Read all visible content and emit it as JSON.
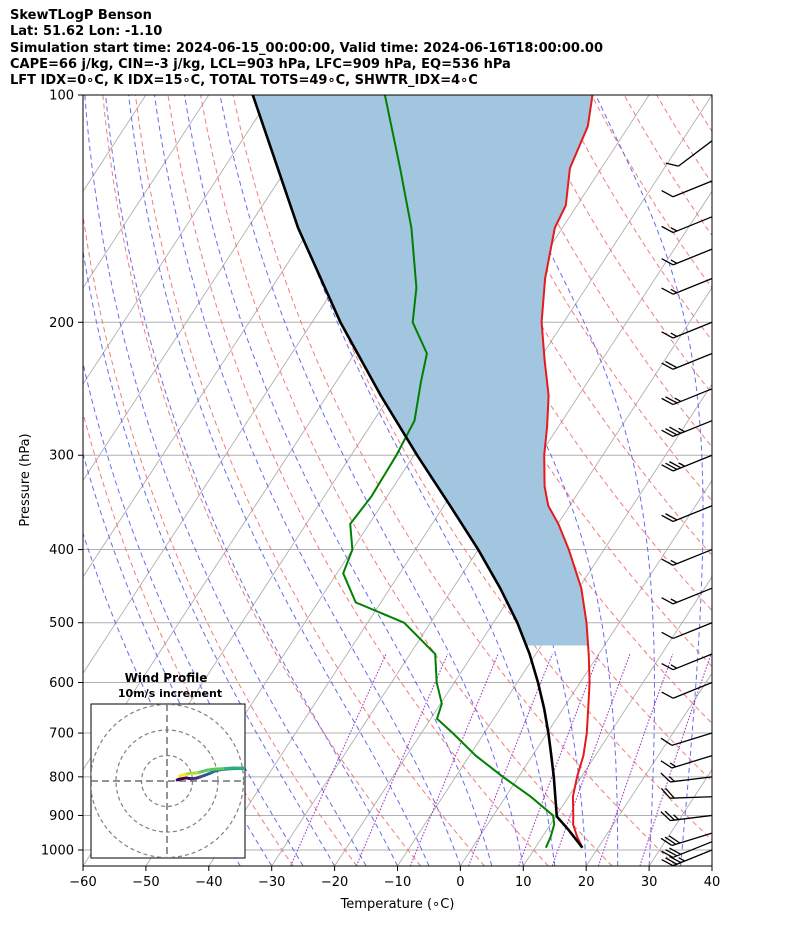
{
  "header": {
    "title_lines": [
      "SkewTLogP Benson",
      "Lat: 51.62   Lon: -1.10",
      "Simulation start time: 2024-06-15_00:00:00, Valid time: 2024-06-16T18:00:00.00",
      "CAPE=66 j/kg, CIN=-3 j/kg, LCL=903 hPa, LFC=909 hPa, EQ=536 hPa",
      "LFT IDX=0∘C, K IDX=15∘C, TOTAL TOTS=49∘C, SHWTR_IDX=4∘C"
    ]
  },
  "chart_data": {
    "type": "skew-t-logp",
    "xlabel": "Temperature (∘C)",
    "ylabel": "Pressure (hPa)",
    "xlim": [
      -60,
      40
    ],
    "plim": [
      1050,
      100
    ],
    "x_ticks": [
      -60,
      -50,
      -40,
      -30,
      -20,
      -10,
      0,
      10,
      20,
      30,
      40
    ],
    "x_tick_labels": [
      "−60",
      "−50",
      "−40",
      "−30",
      "−20",
      "−10",
      "0",
      "10",
      "20",
      "30",
      "40"
    ],
    "p_ticks": [
      100,
      200,
      300,
      400,
      500,
      600,
      700,
      800,
      900,
      1000
    ],
    "p_tick_labels": [
      "100",
      "200",
      "300",
      "400",
      "500",
      "600",
      "700",
      "800",
      "900",
      "1000"
    ],
    "grid": true,
    "colors": {
      "temperature": "#e41a1c",
      "dewpoint": "#008000",
      "parcel": "#000000",
      "cape_fill": "#a3c6e0",
      "isotherm": "#b0b0b0",
      "dry_adiabat": "#f26d6d",
      "moist_adiabat": "#5a5af0",
      "mixing_ratio": "#9b30c0"
    },
    "temperature_profile": [
      {
        "p": 993,
        "t": 17.5
      },
      {
        "p": 960,
        "t": 15.5
      },
      {
        "p": 925,
        "t": 13.6
      },
      {
        "p": 900,
        "t": 12.7
      },
      {
        "p": 850,
        "t": 10.7
      },
      {
        "p": 800,
        "t": 9.3
      },
      {
        "p": 750,
        "t": 8.1
      },
      {
        "p": 700,
        "t": 6.3
      },
      {
        "p": 650,
        "t": 4.0
      },
      {
        "p": 600,
        "t": 1.5
      },
      {
        "p": 550,
        "t": -1.6
      },
      {
        "p": 500,
        "t": -5.2
      },
      {
        "p": 450,
        "t": -9.6
      },
      {
        "p": 400,
        "t": -15.6
      },
      {
        "p": 370,
        "t": -19.9
      },
      {
        "p": 350,
        "t": -23.4
      },
      {
        "p": 330,
        "t": -26.0
      },
      {
        "p": 300,
        "t": -29.3
      },
      {
        "p": 275,
        "t": -31.8
      },
      {
        "p": 250,
        "t": -34.8
      },
      {
        "p": 225,
        "t": -39.0
      },
      {
        "p": 200,
        "t": -43.5
      },
      {
        "p": 175,
        "t": -47.5
      },
      {
        "p": 150,
        "t": -51.2
      },
      {
        "p": 140,
        "t": -51.8
      },
      {
        "p": 125,
        "t": -55.0
      },
      {
        "p": 110,
        "t": -56.5
      },
      {
        "p": 100,
        "t": -59.0
      }
    ],
    "dewpoint_profile": [
      {
        "p": 993,
        "td": 11.7
      },
      {
        "p": 960,
        "td": 11.3
      },
      {
        "p": 925,
        "td": 10.6
      },
      {
        "p": 900,
        "td": 9.5
      },
      {
        "p": 850,
        "td": 4.0
      },
      {
        "p": 800,
        "td": -2.5
      },
      {
        "p": 750,
        "td": -9.0
      },
      {
        "p": 700,
        "td": -15.0
      },
      {
        "p": 670,
        "td": -19.0
      },
      {
        "p": 640,
        "td": -19.8
      },
      {
        "p": 600,
        "td": -22.8
      },
      {
        "p": 550,
        "td": -26.0
      },
      {
        "p": 500,
        "td": -34.2
      },
      {
        "p": 470,
        "td": -44.0
      },
      {
        "p": 430,
        "td": -49.0
      },
      {
        "p": 400,
        "td": -50.0
      },
      {
        "p": 370,
        "td": -53.0
      },
      {
        "p": 340,
        "td": -52.5
      },
      {
        "p": 300,
        "td": -52.8
      },
      {
        "p": 270,
        "td": -53.5
      },
      {
        "p": 240,
        "td": -56.5
      },
      {
        "p": 220,
        "td": -58.5
      },
      {
        "p": 200,
        "td": -64.0
      },
      {
        "p": 180,
        "td": -67.0
      },
      {
        "p": 150,
        "td": -74.0
      },
      {
        "p": 125,
        "td": -82.0
      },
      {
        "p": 100,
        "td": -92.0
      }
    ],
    "parcel_profile": [
      {
        "p": 993,
        "t": 17.5
      },
      {
        "p": 940,
        "t": 13.4
      },
      {
        "p": 903,
        "t": 10.2
      },
      {
        "p": 850,
        "t": 7.9
      },
      {
        "p": 800,
        "t": 5.6
      },
      {
        "p": 750,
        "t": 3.0
      },
      {
        "p": 700,
        "t": 0.2
      },
      {
        "p": 650,
        "t": -3.0
      },
      {
        "p": 600,
        "t": -6.7
      },
      {
        "p": 550,
        "t": -11.0
      },
      {
        "p": 500,
        "t": -16.2
      },
      {
        "p": 450,
        "t": -22.5
      },
      {
        "p": 400,
        "t": -30.0
      },
      {
        "p": 350,
        "t": -39.0
      },
      {
        "p": 300,
        "t": -49.5
      },
      {
        "p": 250,
        "t": -61.5
      },
      {
        "p": 200,
        "t": -75.5
      },
      {
        "p": 150,
        "t": -92.0
      },
      {
        "p": 100,
        "t": -113.0
      }
    ],
    "wind_barbs": [
      {
        "p": 1000,
        "speed_kt": 35,
        "dir_deg": 250
      },
      {
        "p": 975,
        "speed_kt": 30,
        "dir_deg": 250
      },
      {
        "p": 950,
        "speed_kt": 30,
        "dir_deg": 255
      },
      {
        "p": 900,
        "speed_kt": 25,
        "dir_deg": 265
      },
      {
        "p": 850,
        "speed_kt": 20,
        "dir_deg": 270
      },
      {
        "p": 800,
        "speed_kt": 15,
        "dir_deg": 265
      },
      {
        "p": 750,
        "speed_kt": 15,
        "dir_deg": 255
      },
      {
        "p": 700,
        "speed_kt": 10,
        "dir_deg": 255
      },
      {
        "p": 600,
        "speed_kt": 10,
        "dir_deg": 250
      },
      {
        "p": 550,
        "speed_kt": 15,
        "dir_deg": 250
      },
      {
        "p": 500,
        "speed_kt": 10,
        "dir_deg": 250
      },
      {
        "p": 450,
        "speed_kt": 15,
        "dir_deg": 250
      },
      {
        "p": 400,
        "speed_kt": 15,
        "dir_deg": 250
      },
      {
        "p": 350,
        "speed_kt": 20,
        "dir_deg": 250
      },
      {
        "p": 300,
        "speed_kt": 35,
        "dir_deg": 250
      },
      {
        "p": 270,
        "speed_kt": 35,
        "dir_deg": 250
      },
      {
        "p": 245,
        "speed_kt": 25,
        "dir_deg": 250
      },
      {
        "p": 220,
        "speed_kt": 20,
        "dir_deg": 250
      },
      {
        "p": 200,
        "speed_kt": 15,
        "dir_deg": 250
      },
      {
        "p": 175,
        "speed_kt": 15,
        "dir_deg": 250
      },
      {
        "p": 160,
        "speed_kt": 15,
        "dir_deg": 250
      },
      {
        "p": 145,
        "speed_kt": 15,
        "dir_deg": 250
      },
      {
        "p": 130,
        "speed_kt": 10,
        "dir_deg": 250
      },
      {
        "p": 115,
        "speed_kt": 10,
        "dir_deg": 235
      }
    ],
    "hodograph": {
      "title_lines": [
        "Wind Profile",
        "10m/s increment"
      ],
      "ring_increment_ms": 10,
      "rings": 3,
      "path": [
        {
          "u": 4.0,
          "v": 0.4
        },
        {
          "u": 5.2,
          "v": 0.8
        },
        {
          "u": 7.5,
          "v": 1.2
        },
        {
          "u": 9.6,
          "v": 0.9
        },
        {
          "u": 11.5,
          "v": 1.1
        },
        {
          "u": 13.0,
          "v": 1.6
        },
        {
          "u": 15.0,
          "v": 2.3
        },
        {
          "u": 17.0,
          "v": 3.1
        },
        {
          "u": 19.0,
          "v": 4.0
        },
        {
          "u": 21.5,
          "v": 4.5
        },
        {
          "u": 24.5,
          "v": 4.8
        },
        {
          "u": 28.0,
          "v": 4.9
        },
        {
          "u": 30.5,
          "v": 5.0
        },
        {
          "u": 26.0,
          "v": 5.1
        },
        {
          "u": 22.0,
          "v": 4.8
        },
        {
          "u": 19.0,
          "v": 4.7
        },
        {
          "u": 15.5,
          "v": 4.2
        },
        {
          "u": 12.0,
          "v": 3.2
        },
        {
          "u": 9.0,
          "v": 3.0
        },
        {
          "u": 7.0,
          "v": 2.6
        },
        {
          "u": 6.0,
          "v": 2.3
        },
        {
          "u": 5.0,
          "v": 2.0
        }
      ]
    }
  }
}
